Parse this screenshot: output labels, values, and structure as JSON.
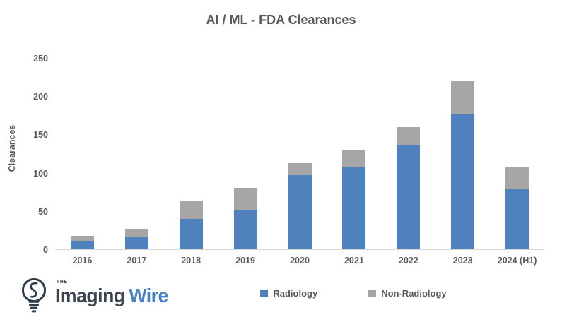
{
  "page": {
    "background": "#ffffff"
  },
  "chart_data": {
    "type": "bar",
    "stacked": true,
    "title": "AI / ML - FDA Clearances",
    "xlabel": "",
    "ylabel": "Clearances",
    "ylim": [
      0,
      250
    ],
    "y_ticks": [
      0,
      50,
      100,
      150,
      200,
      250
    ],
    "grid": false,
    "legend_position": "bottom-center",
    "categories": [
      "2016",
      "2017",
      "2018",
      "2019",
      "2020",
      "2021",
      "2022",
      "2023",
      "2024 (H1)"
    ],
    "series": [
      {
        "name": "Radiology",
        "color": "#4f81bd",
        "values": [
          11,
          16,
          40,
          51,
          97,
          108,
          136,
          177,
          78
        ]
      },
      {
        "name": "Non-Radiology",
        "color": "#a6a6a6",
        "values": [
          7,
          10,
          24,
          29,
          16,
          22,
          24,
          43,
          29
        ]
      }
    ],
    "totals": [
      18,
      26,
      64,
      80,
      113,
      130,
      160,
      220,
      107
    ],
    "axis_line_color": "#d6d6d6",
    "text_color": "#595959"
  },
  "branding": {
    "logo_the": "THE",
    "logo_imaging": "Imaging",
    "logo_wire": "Wire",
    "logo_icon": "lightbulb-icon",
    "logo_text_color": "#3d434c",
    "logo_accent_color": "#4a80c4"
  }
}
